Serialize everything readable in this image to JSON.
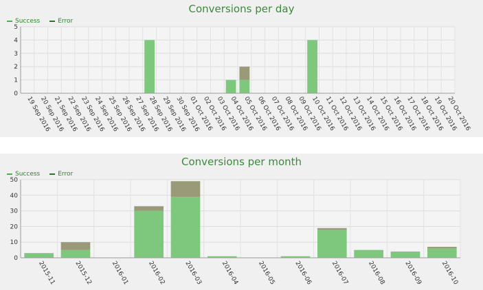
{
  "chart_data": [
    {
      "type": "bar",
      "title": "Conversions per day",
      "legend_position": "top-left",
      "stacked": true,
      "grid": true,
      "categories": [
        "19 Sep 2016",
        "20 Sep 2016",
        "21 Sep 2016",
        "22 Sep 2016",
        "23 Sep 2016",
        "24 Sep 2016",
        "25 Sep 2016",
        "26 Sep 2016",
        "27 Sep 2016",
        "28 Sep 2016",
        "29 Sep 2016",
        "30 Sep 2016",
        "01 Oct 2016",
        "02 Oct 2016",
        "03 Oct 2016",
        "04 Oct 2016",
        "05 Oct 2016",
        "06 Oct 2016",
        "07 Oct 2016",
        "08 Oct 2016",
        "09 Oct 2016",
        "10 Oct 2016",
        "11 Oct 2016",
        "12 Oct 2016",
        "13 Oct 2016",
        "14 Oct 2016",
        "15 Oct 2016",
        "16 Oct 2016",
        "17 Oct 2016",
        "18 Oct 2016",
        "19 Oct 2016",
        "20 Oct 2016"
      ],
      "series": [
        {
          "name": "Success",
          "color": "#7ec87e",
          "values": [
            0,
            0,
            0,
            0,
            0,
            0,
            0,
            0,
            0,
            4,
            0,
            0,
            0,
            0,
            0,
            1,
            1,
            0,
            0,
            0,
            0,
            4,
            0,
            0,
            0,
            0,
            0,
            0,
            0,
            0,
            0,
            0
          ]
        },
        {
          "name": "Error",
          "color": "#9a9a78",
          "values": [
            0,
            0,
            0,
            0,
            0,
            0,
            0,
            0,
            0,
            0,
            0,
            0,
            0,
            0,
            0,
            0,
            1,
            0,
            0,
            0,
            0,
            0,
            0,
            0,
            0,
            0,
            0,
            0,
            0,
            0,
            0,
            0
          ]
        }
      ],
      "ylim": [
        0,
        5
      ],
      "yticks": [
        0,
        1,
        2,
        3,
        4,
        5
      ]
    },
    {
      "type": "bar",
      "title": "Conversions per month",
      "legend_position": "top-left",
      "stacked": true,
      "grid": true,
      "categories": [
        "2015-11",
        "2015-12",
        "2016-01",
        "2016-02",
        "2016-03",
        "2016-04",
        "2016-05",
        "2016-06",
        "2016-07",
        "2016-08",
        "2016-09",
        "2016-10"
      ],
      "series": [
        {
          "name": "Success",
          "color": "#7ec87e",
          "values": [
            3,
            5,
            0,
            30,
            39,
            1,
            0,
            1,
            18,
            5,
            4,
            6
          ]
        },
        {
          "name": "Error",
          "color": "#9a9a78",
          "values": [
            0,
            5,
            0,
            3,
            10,
            0,
            0,
            0,
            1,
            0,
            0,
            1
          ]
        }
      ],
      "ylim": [
        0,
        50
      ],
      "yticks": [
        0,
        10,
        20,
        30,
        40,
        50
      ]
    }
  ]
}
